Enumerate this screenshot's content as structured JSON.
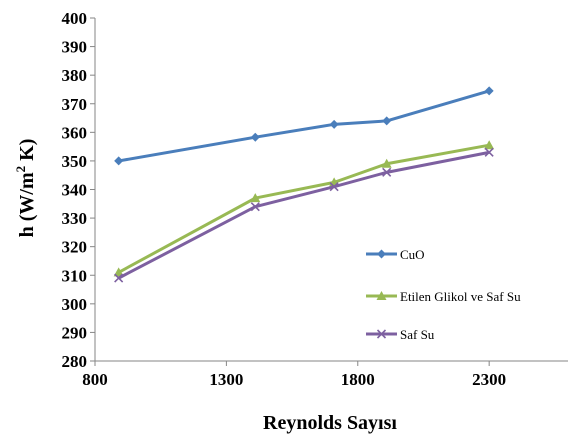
{
  "chart_data": {
    "type": "line",
    "title": "",
    "xlabel": "Reynolds Sayısı",
    "ylabel_main": "h (W/m",
    "ylabel_sup": "2",
    "ylabel_end": " K)",
    "xlim": [
      800,
      2600
    ],
    "ylim": [
      280,
      400
    ],
    "x_ticks": [
      800,
      1300,
      1800,
      2300
    ],
    "y_ticks": [
      280,
      290,
      300,
      310,
      320,
      330,
      340,
      350,
      360,
      370,
      380,
      390,
      400
    ],
    "grid": false,
    "legend_position": "right",
    "series": [
      {
        "name": "CuO",
        "color": "#4A7EBB",
        "marker": "diamond",
        "x": [
          890,
          1410,
          1710,
          1910,
          2300
        ],
        "y": [
          350,
          358.3,
          362.8,
          364,
          374.5
        ]
      },
      {
        "name": "Etilen Glikol ve Saf Su",
        "color": "#98B954",
        "marker": "triangle",
        "x": [
          890,
          1410,
          1710,
          1910,
          2300
        ],
        "y": [
          311,
          337,
          342.5,
          349,
          355.5
        ]
      },
      {
        "name": "Saf Su",
        "color": "#7D60A0",
        "marker": "x",
        "x": [
          890,
          1410,
          1710,
          1910,
          2300
        ],
        "y": [
          309,
          334,
          341,
          346,
          353
        ]
      }
    ]
  }
}
